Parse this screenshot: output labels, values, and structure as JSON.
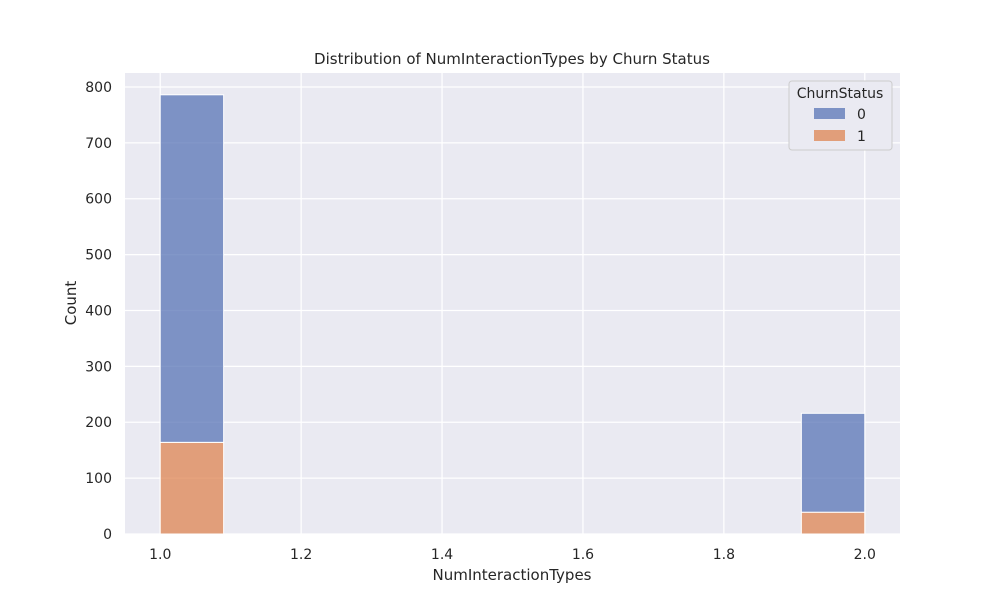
{
  "chart_data": {
    "type": "bar",
    "title": "Distribution of NumInteractionTypes by Churn Status",
    "xlabel": "NumInteractionTypes",
    "ylabel": "Count",
    "xlim": [
      0.95,
      2.05
    ],
    "ylim": [
      0,
      825
    ],
    "xticks": [
      "1.0",
      "1.2",
      "1.4",
      "1.6",
      "1.8",
      "2.0"
    ],
    "yticks": [
      "0",
      "100",
      "200",
      "300",
      "400",
      "500",
      "600",
      "700",
      "800"
    ],
    "grid": true,
    "stacked": true,
    "bin_width": 0.09,
    "bins": [
      1.0,
      1.91
    ],
    "series": [
      {
        "name": "0",
        "values": [
          622,
          177
        ],
        "color": "#5874b5"
      },
      {
        "name": "1",
        "values": [
          164,
          39
        ],
        "color": "#dd8452"
      }
    ],
    "legend": {
      "title": "ChurnStatus",
      "placement": "top-right"
    },
    "background": "#eaeaf2"
  }
}
